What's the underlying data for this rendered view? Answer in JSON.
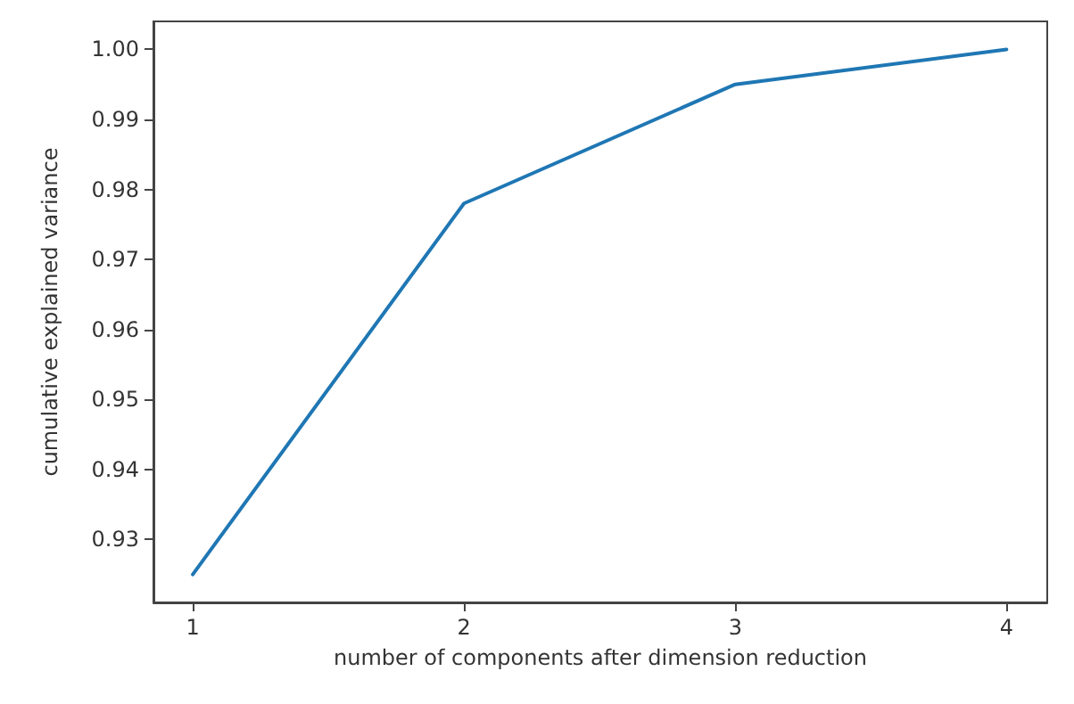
{
  "chart_data": {
    "type": "line",
    "xlabel": "number of components after dimension reduction",
    "ylabel": "cumulative explained variance",
    "x": [
      1,
      2,
      3,
      4
    ],
    "series": [
      {
        "color": "#1f77b4",
        "values": [
          0.925,
          0.978,
          0.995,
          1.0
        ]
      }
    ],
    "xlim": [
      0.855,
      4.15
    ],
    "ylim": [
      0.921,
      1.004
    ],
    "xticks": [
      1,
      2,
      3,
      4
    ],
    "yticks": [
      {
        "value": 0.93,
        "label": "0.93"
      },
      {
        "value": 0.94,
        "label": "0.94"
      },
      {
        "value": 0.95,
        "label": "0.95"
      },
      {
        "value": 0.96,
        "label": "0.96"
      },
      {
        "value": 0.97,
        "label": "0.97"
      },
      {
        "value": 0.98,
        "label": "0.98"
      },
      {
        "value": 0.99,
        "label": "0.99"
      },
      {
        "value": 1.0,
        "label": "1.00"
      }
    ],
    "grid": false,
    "marker": "none",
    "line_style": "solid"
  }
}
